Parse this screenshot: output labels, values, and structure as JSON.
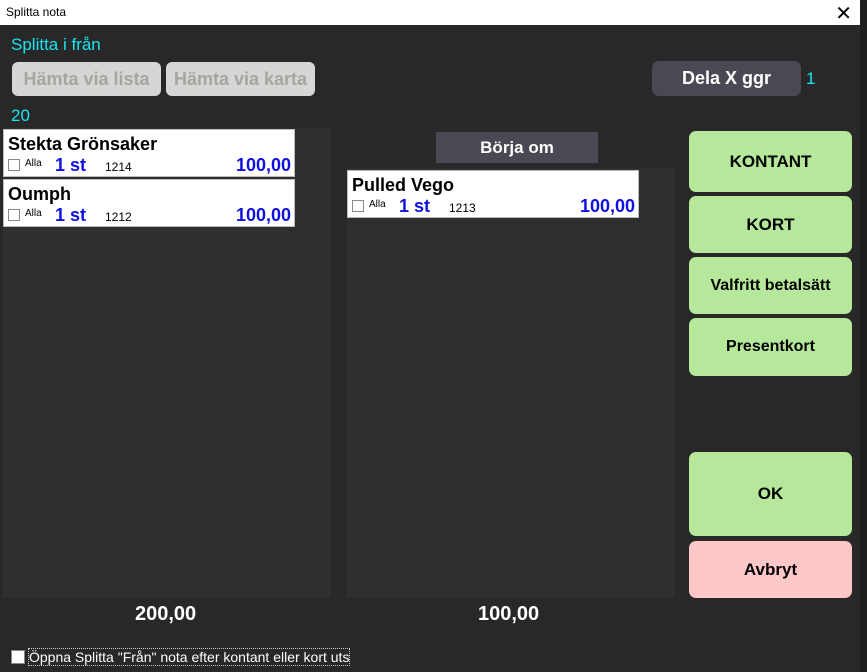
{
  "window": {
    "title": "Splitta nota",
    "close_icon": "close-icon"
  },
  "from_label": "Splitta i från",
  "buttons": {
    "fetch_list": "Hämta via lista",
    "fetch_map": "Hämta via karta",
    "split_x": "Dela X ggr",
    "restart": "Börja om"
  },
  "split_count": "1",
  "table_number": "20",
  "left_items": [
    {
      "name": "Stekta Grönsaker",
      "all": "Alla",
      "qty": "1 st",
      "code": "1214",
      "price": "100,00"
    },
    {
      "name": "Oumph",
      "all": "Alla",
      "qty": "1 st",
      "code": "1212",
      "price": "100,00"
    }
  ],
  "right_items": [
    {
      "name": "Pulled Vego",
      "all": "Alla",
      "qty": "1 st",
      "code": "1213",
      "price": "100,00"
    }
  ],
  "payment": {
    "cash": "KONTANT",
    "card": "KORT",
    "any": "Valfritt betalsätt",
    "gift": "Presentkort",
    "ok": "OK",
    "cancel": "Avbryt"
  },
  "totals": {
    "left": "200,00",
    "right": "100,00"
  },
  "open_option": "Öppna Splitta \"Från\" nota efter kontant eller kort utslagn",
  "colors": {
    "accent": "#19e6f0",
    "pay": "#b5e89a",
    "cancel": "#ffc8c8",
    "price": "#1010e0"
  }
}
